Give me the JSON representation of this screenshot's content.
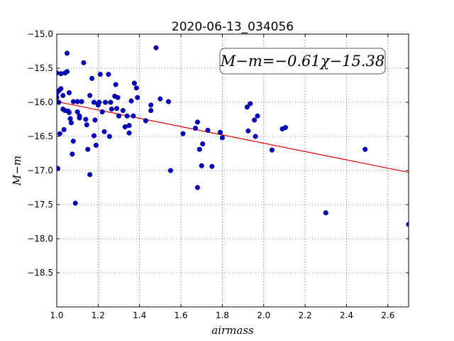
{
  "chart_data": {
    "type": "scatter",
    "title": "2020-06-13_034056",
    "xlabel": "airmass",
    "ylabel": "M−m",
    "xlim": [
      1.0,
      2.7
    ],
    "ylim": [
      -19.0,
      -15.0
    ],
    "y_inverted": true,
    "grid": true,
    "x_ticks": [
      1.0,
      1.2,
      1.4,
      1.6,
      1.8,
      2.0,
      2.2,
      2.4,
      2.6
    ],
    "x_tick_labels": [
      "1.0",
      "1.2",
      "1.4",
      "1.6",
      "1.8",
      "2.0",
      "2.2",
      "2.4",
      "2.6"
    ],
    "y_ticks": [
      -15.0,
      -15.5,
      -16.0,
      -16.5,
      -17.0,
      -17.5,
      -18.0,
      -18.5
    ],
    "y_tick_labels": [
      "−15.0",
      "−15.5",
      "−16.0",
      "−16.5",
      "−17.0",
      "−17.5",
      "−18.0",
      "−18.5"
    ],
    "annotation": "M−m=−0.61χ−15.38",
    "fit": {
      "slope": -0.61,
      "intercept": -15.38,
      "color": "#dd0000"
    },
    "marker_color": "#0000cc",
    "points": [
      [
        1.0,
        -15.57
      ],
      [
        1.0,
        -15.87
      ],
      [
        1.0,
        -15.93
      ],
      [
        1.005,
        -16.97
      ],
      [
        1.01,
        -15.83
      ],
      [
        1.01,
        -16.0
      ],
      [
        1.015,
        -16.46
      ],
      [
        1.02,
        -15.8
      ],
      [
        1.02,
        -15.58
      ],
      [
        1.03,
        -15.9
      ],
      [
        1.03,
        -16.1
      ],
      [
        1.035,
        -16.4
      ],
      [
        1.04,
        -15.57
      ],
      [
        1.04,
        -16.12
      ],
      [
        1.05,
        -15.28
      ],
      [
        1.05,
        -15.55
      ],
      [
        1.055,
        -16.13
      ],
      [
        1.06,
        -15.86
      ],
      [
        1.06,
        -16.15
      ],
      [
        1.065,
        -16.24
      ],
      [
        1.07,
        -16.3
      ],
      [
        1.075,
        -16.76
      ],
      [
        1.08,
        -15.99
      ],
      [
        1.08,
        -16.57
      ],
      [
        1.09,
        -17.48
      ],
      [
        1.1,
        -15.99
      ],
      [
        1.1,
        -16.14
      ],
      [
        1.11,
        -16.2
      ],
      [
        1.11,
        -16.23
      ],
      [
        1.12,
        -15.99
      ],
      [
        1.13,
        -15.42
      ],
      [
        1.14,
        -16.25
      ],
      [
        1.145,
        -16.33
      ],
      [
        1.15,
        -16.69
      ],
      [
        1.16,
        -17.06
      ],
      [
        1.16,
        -15.9
      ],
      [
        1.17,
        -15.65
      ],
      [
        1.18,
        -16.49
      ],
      [
        1.18,
        -16.0
      ],
      [
        1.185,
        -16.26
      ],
      [
        1.19,
        -16.63
      ],
      [
        1.2,
        -16.04
      ],
      [
        1.205,
        -16.0
      ],
      [
        1.21,
        -15.59
      ],
      [
        1.22,
        -16.14
      ],
      [
        1.23,
        -16.43
      ],
      [
        1.235,
        -16.0
      ],
      [
        1.25,
        -15.59
      ],
      [
        1.255,
        -16.5
      ],
      [
        1.26,
        -16.0
      ],
      [
        1.265,
        -16.1
      ],
      [
        1.28,
        -15.91
      ],
      [
        1.285,
        -15.74
      ],
      [
        1.29,
        -16.09
      ],
      [
        1.295,
        -15.93
      ],
      [
        1.3,
        -16.2
      ],
      [
        1.32,
        -16.12
      ],
      [
        1.33,
        -16.36
      ],
      [
        1.34,
        -16.2
      ],
      [
        1.35,
        -16.34
      ],
      [
        1.35,
        -16.45
      ],
      [
        1.36,
        -15.98
      ],
      [
        1.37,
        -16.2
      ],
      [
        1.375,
        -15.72
      ],
      [
        1.385,
        -15.79
      ],
      [
        1.39,
        -15.93
      ],
      [
        1.43,
        -16.27
      ],
      [
        1.455,
        -16.04
      ],
      [
        1.455,
        -16.12
      ],
      [
        1.48,
        -15.2
      ],
      [
        1.5,
        -15.95
      ],
      [
        1.54,
        -15.99
      ],
      [
        1.55,
        -17.0
      ],
      [
        1.61,
        -16.46
      ],
      [
        1.67,
        -16.38
      ],
      [
        1.68,
        -16.29
      ],
      [
        1.68,
        -17.25
      ],
      [
        1.69,
        -16.69
      ],
      [
        1.7,
        -16.93
      ],
      [
        1.705,
        -16.61
      ],
      [
        1.73,
        -16.41
      ],
      [
        1.75,
        -16.94
      ],
      [
        1.79,
        -16.44
      ],
      [
        1.8,
        -16.52
      ],
      [
        1.92,
        -16.07
      ],
      [
        1.925,
        -16.42
      ],
      [
        1.935,
        -16.02
      ],
      [
        1.955,
        -16.26
      ],
      [
        1.96,
        -16.5
      ],
      [
        1.97,
        -16.2
      ],
      [
        2.04,
        -16.7
      ],
      [
        2.09,
        -16.39
      ],
      [
        2.105,
        -16.37
      ],
      [
        2.3,
        -17.62
      ],
      [
        2.49,
        -16.69
      ],
      [
        2.7,
        -17.79
      ]
    ]
  }
}
